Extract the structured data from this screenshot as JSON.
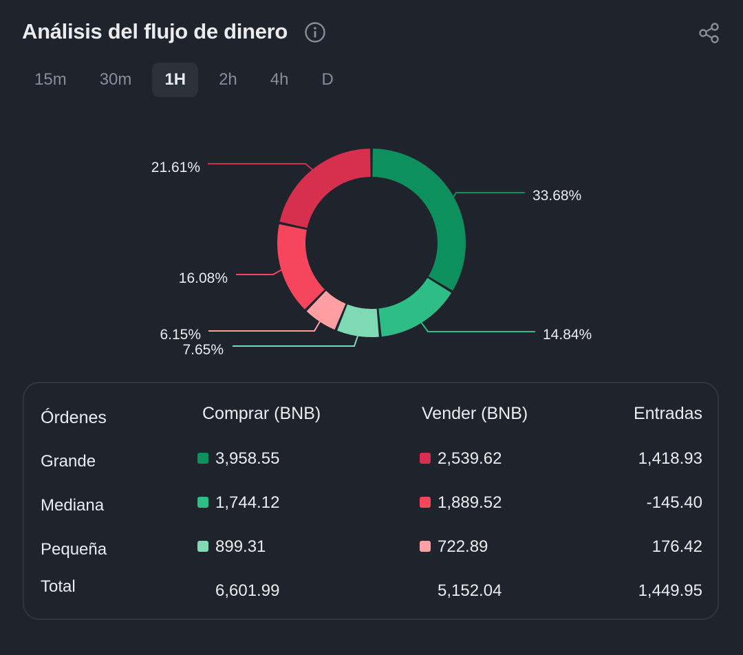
{
  "header": {
    "title": "Análisis del flujo de dinero"
  },
  "tabs": [
    {
      "label": "15m",
      "active": false
    },
    {
      "label": "30m",
      "active": false
    },
    {
      "label": "1H",
      "active": true
    },
    {
      "label": "2h",
      "active": false
    },
    {
      "label": "4h",
      "active": false
    },
    {
      "label": "D",
      "active": false
    }
  ],
  "colors": {
    "buy_large": "#0e8f5e",
    "buy_medium": "#2ebd85",
    "buy_small": "#7fd9b2",
    "sell_large": "#d6304e",
    "sell_medium": "#f6465d",
    "sell_small": "#ff9ea3"
  },
  "chart_data": {
    "type": "pie",
    "slices": [
      {
        "label": "33.68%",
        "value": 33.68,
        "color": "#0e8f5e"
      },
      {
        "label": "14.84%",
        "value": 14.84,
        "color": "#2ebd85"
      },
      {
        "label": "7.65%",
        "value": 7.65,
        "color": "#7fd9b2"
      },
      {
        "label": "6.15%",
        "value": 6.15,
        "color": "#ff9ea3"
      },
      {
        "label": "16.08%",
        "value": 16.08,
        "color": "#f6465d"
      },
      {
        "label": "21.61%",
        "value": 21.61,
        "color": "#d6304e"
      }
    ]
  },
  "table": {
    "headers": {
      "orders": "Órdenes",
      "buy": "Comprar (BNB)",
      "sell": "Vender (BNB)",
      "inflow": "Entradas"
    },
    "rows": [
      {
        "label": "Grande",
        "buy": "3,958.55",
        "sell": "2,539.62",
        "inflow": "1,418.93"
      },
      {
        "label": "Mediana",
        "buy": "1,744.12",
        "sell": "1,889.52",
        "inflow": "-145.40"
      },
      {
        "label": "Pequeña",
        "buy": "899.31",
        "sell": "722.89",
        "inflow": "176.42"
      }
    ],
    "total": {
      "label": "Total",
      "buy": "6,601.99",
      "sell": "5,152.04",
      "inflow": "1,449.95"
    }
  }
}
